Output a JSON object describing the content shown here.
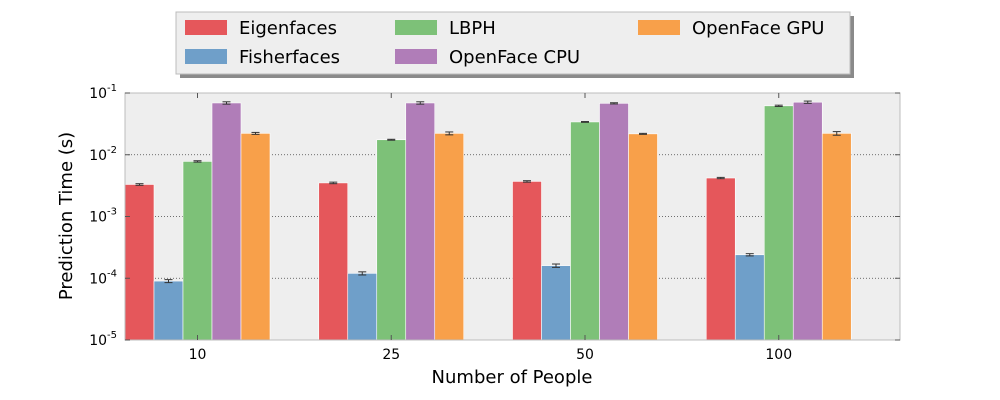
{
  "chart_data": {
    "type": "bar",
    "title": "",
    "xlabel": "Number of People",
    "ylabel": "Prediction Time (s)",
    "yscale": "log",
    "ylim": [
      1e-05,
      0.1
    ],
    "yticks": [
      {
        "value": 1e-05,
        "base": "10",
        "exp": "-5"
      },
      {
        "value": 0.0001,
        "base": "10",
        "exp": "-4"
      },
      {
        "value": 0.001,
        "base": "10",
        "exp": "-3"
      },
      {
        "value": 0.01,
        "base": "10",
        "exp": "-2"
      },
      {
        "value": 0.1,
        "base": "10",
        "exp": "-1"
      }
    ],
    "grid": true,
    "legend": "top-center",
    "categories": [
      "10",
      "25",
      "50",
      "100"
    ],
    "series": [
      {
        "name": "Eigenfaces",
        "color": "#e5575b",
        "values": [
          0.0033,
          0.0035,
          0.0037,
          0.0042
        ],
        "err": [
          0.0001,
          0.0001,
          0.0001,
          0.0001
        ]
      },
      {
        "name": "Fisherfaces",
        "color": "#6f9fc9",
        "values": [
          9e-05,
          0.00012,
          0.00016,
          0.00024
        ],
        "err": [
          5e-06,
          7e-06,
          1e-05,
          1e-05
        ]
      },
      {
        "name": "LBPH",
        "color": "#7dc178",
        "values": [
          0.0078,
          0.0175,
          0.034,
          0.062
        ],
        "err": [
          0.0002,
          0.0003,
          0.0005,
          0.0015
        ]
      },
      {
        "name": "OpenFace CPU",
        "color": "#b07db8",
        "values": [
          0.069,
          0.069,
          0.068,
          0.071
        ],
        "err": [
          0.003,
          0.003,
          0.0015,
          0.003
        ]
      },
      {
        "name": "OpenFace GPU",
        "color": "#f8a04a",
        "values": [
          0.0222,
          0.0222,
          0.0218,
          0.0222
        ],
        "err": [
          0.0008,
          0.0012,
          0.0004,
          0.0015
        ]
      }
    ]
  }
}
